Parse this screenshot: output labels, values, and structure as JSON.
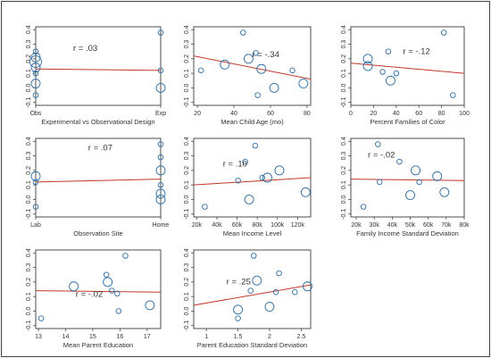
{
  "colors": {
    "point": "#2e6ea6",
    "trend": "#c0392b",
    "axis": "#333333",
    "frame": "#222222"
  },
  "chart_data": [
    {
      "type": "scatter",
      "xlabel": "Experimental vs Observational Design",
      "r_label": "r = .03",
      "xlim": [
        0,
        1
      ],
      "ylim": [
        -0.12,
        0.42
      ],
      "xticks": [
        {
          "v": 0,
          "t": "Obs"
        },
        {
          "v": 1,
          "t": "Exp"
        }
      ],
      "yticks": [
        -0.1,
        0,
        0.1,
        0.2,
        0.3,
        0.4
      ],
      "trend": [
        0.13,
        0.12
      ],
      "points": [
        {
          "x": 0,
          "y": 0.25,
          "s": 1
        },
        {
          "x": 0,
          "y": 0.21,
          "s": 2
        },
        {
          "x": 0,
          "y": 0.18,
          "s": 3
        },
        {
          "x": 0,
          "y": 0.14,
          "s": 2
        },
        {
          "x": 0,
          "y": 0.1,
          "s": 1
        },
        {
          "x": 0,
          "y": 0.03,
          "s": 2
        },
        {
          "x": 0,
          "y": -0.05,
          "s": 1
        },
        {
          "x": 1,
          "y": 0.38,
          "s": 1
        },
        {
          "x": 1,
          "y": 0.12,
          "s": 1
        },
        {
          "x": 1,
          "y": 0.0,
          "s": 2
        }
      ]
    },
    {
      "type": "scatter",
      "xlabel": "Mean Child Age (mo)",
      "r_label": "r = -.34",
      "xlim": [
        18,
        82
      ],
      "ylim": [
        -0.12,
        0.42
      ],
      "xticks": [
        {
          "v": 20,
          "t": "20"
        },
        {
          "v": 40,
          "t": "40"
        },
        {
          "v": 60,
          "t": "60"
        },
        {
          "v": 80,
          "t": "80"
        }
      ],
      "yticks": [
        -0.1,
        0,
        0.1,
        0.2,
        0.3,
        0.4
      ],
      "trend": [
        0.22,
        0.06
      ],
      "points": [
        {
          "x": 22,
          "y": 0.12,
          "s": 1
        },
        {
          "x": 35,
          "y": 0.16,
          "s": 2
        },
        {
          "x": 45,
          "y": 0.38,
          "s": 1
        },
        {
          "x": 48,
          "y": 0.2,
          "s": 2
        },
        {
          "x": 52,
          "y": 0.24,
          "s": 1
        },
        {
          "x": 55,
          "y": 0.13,
          "s": 2
        },
        {
          "x": 53,
          "y": -0.05,
          "s": 1
        },
        {
          "x": 62,
          "y": 0.0,
          "s": 2
        },
        {
          "x": 72,
          "y": 0.12,
          "s": 1
        },
        {
          "x": 78,
          "y": 0.03,
          "s": 2
        }
      ]
    },
    {
      "type": "scatter",
      "xlabel": "Percent Families of Color",
      "r_label": "r = -.12",
      "xlim": [
        0,
        100
      ],
      "ylim": [
        -0.12,
        0.42
      ],
      "xticks": [
        {
          "v": 0,
          "t": "0"
        },
        {
          "v": 20,
          "t": "20"
        },
        {
          "v": 40,
          "t": "40"
        },
        {
          "v": 60,
          "t": "60"
        },
        {
          "v": 80,
          "t": "80"
        },
        {
          "v": 100,
          "t": "100"
        }
      ],
      "yticks": [
        -0.1,
        0,
        0.1,
        0.2,
        0.3,
        0.4
      ],
      "trend": [
        0.17,
        0.1
      ],
      "points": [
        {
          "x": 15,
          "y": 0.2,
          "s": 2
        },
        {
          "x": 15,
          "y": 0.15,
          "s": 2
        },
        {
          "x": 28,
          "y": 0.11,
          "s": 1
        },
        {
          "x": 33,
          "y": 0.25,
          "s": 1
        },
        {
          "x": 35,
          "y": 0.05,
          "s": 2
        },
        {
          "x": 40,
          "y": 0.1,
          "s": 1
        },
        {
          "x": 82,
          "y": 0.38,
          "s": 1
        },
        {
          "x": 90,
          "y": -0.05,
          "s": 1
        }
      ]
    },
    {
      "type": "scatter",
      "xlabel": "Observation Site",
      "r_label": "r = .07",
      "xlim": [
        0,
        1
      ],
      "ylim": [
        -0.12,
        0.42
      ],
      "xticks": [
        {
          "v": 0,
          "t": "Lab"
        },
        {
          "v": 1,
          "t": "Home"
        }
      ],
      "yticks": [
        -0.1,
        0,
        0.1,
        0.2,
        0.3,
        0.4
      ],
      "trend": [
        0.12,
        0.14
      ],
      "points": [
        {
          "x": 0,
          "y": 0.16,
          "s": 2
        },
        {
          "x": 0,
          "y": 0.12,
          "s": 1
        },
        {
          "x": 0,
          "y": -0.05,
          "s": 1
        },
        {
          "x": 1,
          "y": 0.38,
          "s": 1
        },
        {
          "x": 1,
          "y": 0.29,
          "s": 1
        },
        {
          "x": 1,
          "y": 0.2,
          "s": 2
        },
        {
          "x": 1,
          "y": 0.1,
          "s": 1
        },
        {
          "x": 1,
          "y": 0.04,
          "s": 2
        },
        {
          "x": 1,
          "y": 0.0,
          "s": 2
        }
      ]
    },
    {
      "type": "scatter",
      "xlabel": "Mean Income Level",
      "r_label": "r = .10",
      "xlim": [
        17000,
        133000
      ],
      "ylim": [
        -0.12,
        0.42
      ],
      "xticks": [
        {
          "v": 20000,
          "t": "20k"
        },
        {
          "v": 40000,
          "t": "40k"
        },
        {
          "v": 60000,
          "t": "60k"
        },
        {
          "v": 80000,
          "t": "80k"
        },
        {
          "v": 100000,
          "t": "100k"
        },
        {
          "v": 120000,
          "t": "120k"
        }
      ],
      "yticks": [
        -0.1,
        0,
        0.1,
        0.2,
        0.3,
        0.4
      ],
      "trend": [
        0.1,
        0.15
      ],
      "points": [
        {
          "x": 28000,
          "y": -0.05,
          "s": 1
        },
        {
          "x": 61000,
          "y": 0.13,
          "s": 1
        },
        {
          "x": 68000,
          "y": 0.26,
          "s": 1
        },
        {
          "x": 72000,
          "y": 0.0,
          "s": 2
        },
        {
          "x": 78000,
          "y": 0.37,
          "s": 1
        },
        {
          "x": 85000,
          "y": 0.15,
          "s": 1
        },
        {
          "x": 90000,
          "y": 0.15,
          "s": 2
        },
        {
          "x": 102000,
          "y": 0.2,
          "s": 2
        },
        {
          "x": 128000,
          "y": 0.05,
          "s": 2
        }
      ]
    },
    {
      "type": "scatter",
      "xlabel": "Family Income Standard Deviation",
      "r_label": "r = -.02",
      "xlim": [
        17000,
        80000
      ],
      "ylim": [
        -0.12,
        0.42
      ],
      "xticks": [
        {
          "v": 20000,
          "t": "20k"
        },
        {
          "v": 30000,
          "t": "30k"
        },
        {
          "v": 40000,
          "t": "40k"
        },
        {
          "v": 50000,
          "t": "50k"
        },
        {
          "v": 60000,
          "t": "60k"
        },
        {
          "v": 70000,
          "t": "70k"
        },
        {
          "v": 80000,
          "t": "80k"
        }
      ],
      "yticks": [
        -0.1,
        0,
        0.1,
        0.2,
        0.3,
        0.4
      ],
      "trend": [
        0.14,
        0.13
      ],
      "points": [
        {
          "x": 24000,
          "y": -0.05,
          "s": 1
        },
        {
          "x": 32000,
          "y": 0.38,
          "s": 1
        },
        {
          "x": 33000,
          "y": 0.12,
          "s": 1
        },
        {
          "x": 44000,
          "y": 0.26,
          "s": 1
        },
        {
          "x": 53000,
          "y": 0.2,
          "s": 2
        },
        {
          "x": 55000,
          "y": 0.12,
          "s": 1
        },
        {
          "x": 50000,
          "y": 0.03,
          "s": 2
        },
        {
          "x": 65000,
          "y": 0.16,
          "s": 2
        },
        {
          "x": 69000,
          "y": 0.05,
          "s": 2
        }
      ]
    },
    {
      "type": "scatter",
      "xlabel": "Mean Parent Education",
      "r_label": "r = -.02",
      "xlim": [
        12.9,
        17.5
      ],
      "ylim": [
        -0.12,
        0.42
      ],
      "xticks": [
        {
          "v": 13,
          "t": "13"
        },
        {
          "v": 14,
          "t": "14"
        },
        {
          "v": 15,
          "t": "15"
        },
        {
          "v": 16,
          "t": "16"
        },
        {
          "v": 17,
          "t": "17"
        }
      ],
      "yticks": [
        -0.1,
        0,
        0.1,
        0.2,
        0.3,
        0.4
      ],
      "trend": [
        0.14,
        0.13
      ],
      "points": [
        {
          "x": 13.1,
          "y": -0.05,
          "s": 1
        },
        {
          "x": 14.3,
          "y": 0.17,
          "s": 2
        },
        {
          "x": 15.5,
          "y": 0.25,
          "s": 1
        },
        {
          "x": 15.55,
          "y": 0.2,
          "s": 2
        },
        {
          "x": 15.7,
          "y": 0.14,
          "s": 1
        },
        {
          "x": 15.9,
          "y": 0.12,
          "s": 1
        },
        {
          "x": 15.95,
          "y": 0.0,
          "s": 1
        },
        {
          "x": 16.2,
          "y": 0.38,
          "s": 1
        },
        {
          "x": 17.1,
          "y": 0.04,
          "s": 2
        }
      ]
    },
    {
      "type": "scatter",
      "xlabel": "Parent Education Standard Deviation",
      "r_label": "r = .25",
      "xlim": [
        0.8,
        2.65
      ],
      "ylim": [
        -0.12,
        0.42
      ],
      "xticks": [
        {
          "v": 1,
          "t": "1"
        },
        {
          "v": 1.5,
          "t": "1.5"
        },
        {
          "v": 2,
          "t": "2"
        },
        {
          "v": 2.5,
          "t": "2.5"
        }
      ],
      "yticks": [
        -0.1,
        0,
        0.1,
        0.2,
        0.3,
        0.4
      ],
      "trend": [
        0.04,
        0.18
      ],
      "points": [
        {
          "x": 1.5,
          "y": 0.01,
          "s": 2
        },
        {
          "x": 1.5,
          "y": -0.05,
          "s": 1
        },
        {
          "x": 1.7,
          "y": 0.14,
          "s": 1
        },
        {
          "x": 1.75,
          "y": 0.38,
          "s": 1
        },
        {
          "x": 1.8,
          "y": 0.21,
          "s": 2
        },
        {
          "x": 2.0,
          "y": 0.03,
          "s": 2
        },
        {
          "x": 2.1,
          "y": 0.13,
          "s": 1
        },
        {
          "x": 2.15,
          "y": 0.26,
          "s": 1
        },
        {
          "x": 2.4,
          "y": 0.13,
          "s": 1
        },
        {
          "x": 2.6,
          "y": 0.17,
          "s": 2
        }
      ]
    }
  ]
}
